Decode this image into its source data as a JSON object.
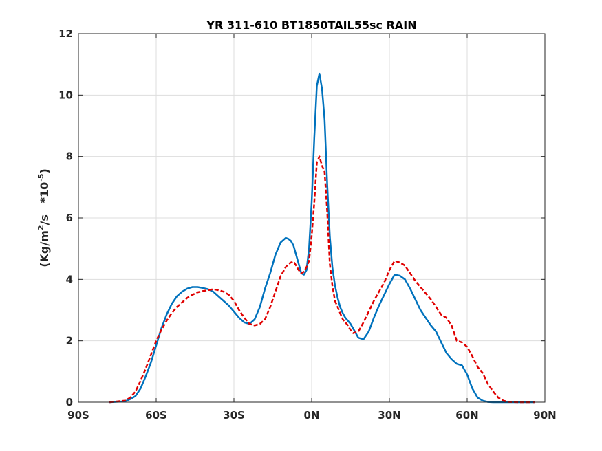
{
  "chart_data": {
    "type": "line",
    "title": "YR 311-610 BT1850TAIL55sc RAIN",
    "xlabel": "",
    "ylabel": {
      "prefix": "(Kg/m",
      "sup1": "2",
      "mid": "/s   *10",
      "sup2": "-5",
      "suffix": ")"
    },
    "xlim": [
      -90,
      90
    ],
    "ylim": [
      0,
      12
    ],
    "grid": true,
    "x_ticks": [
      -90,
      -60,
      -30,
      0,
      30,
      60,
      90
    ],
    "x_tick_labels": [
      "90S",
      "60S",
      "30S",
      "0N",
      "30N",
      "60N",
      "90N"
    ],
    "y_ticks": [
      0,
      2,
      4,
      6,
      8,
      10,
      12
    ],
    "y_tick_labels": [
      "0",
      "2",
      "4",
      "6",
      "8",
      "10",
      "12"
    ],
    "series": [
      {
        "color": "#0072BD",
        "style": "solid",
        "x": [
          -78,
          -72,
          -70,
          -68,
          -66,
          -64,
          -62,
          -60,
          -58,
          -56,
          -54,
          -52,
          -50,
          -48,
          -46,
          -44,
          -42,
          -40,
          -38,
          -36,
          -34,
          -32,
          -30,
          -28,
          -26,
          -24,
          -22,
          -20,
          -18,
          -16,
          -14,
          -12,
          -10,
          -9,
          -8,
          -7,
          -6,
          -5,
          -4,
          -3,
          -2,
          -1,
          0,
          1,
          2,
          3,
          4,
          5,
          6,
          7,
          8,
          9,
          10,
          11,
          12,
          13,
          14,
          15,
          16,
          18,
          20,
          22,
          24,
          26,
          28,
          30,
          32,
          34,
          36,
          38,
          40,
          42,
          44,
          46,
          48,
          50,
          52,
          54,
          56,
          58,
          60,
          62,
          64,
          66,
          68,
          70,
          72,
          74,
          76,
          80,
          84,
          86
        ],
        "y": [
          0.0,
          0.03,
          0.1,
          0.2,
          0.45,
          0.85,
          1.3,
          1.85,
          2.4,
          2.85,
          3.2,
          3.45,
          3.6,
          3.7,
          3.75,
          3.75,
          3.72,
          3.68,
          3.6,
          3.45,
          3.3,
          3.15,
          2.95,
          2.75,
          2.6,
          2.55,
          2.7,
          3.1,
          3.7,
          4.2,
          4.8,
          5.2,
          5.35,
          5.32,
          5.25,
          5.1,
          4.8,
          4.5,
          4.2,
          4.15,
          4.3,
          5.0,
          6.5,
          8.6,
          10.3,
          10.7,
          10.2,
          9.2,
          7.1,
          5.4,
          4.4,
          3.8,
          3.4,
          3.1,
          2.9,
          2.75,
          2.65,
          2.55,
          2.4,
          2.1,
          2.05,
          2.3,
          2.75,
          3.15,
          3.5,
          3.85,
          4.15,
          4.12,
          4.0,
          3.7,
          3.35,
          3.0,
          2.75,
          2.5,
          2.3,
          1.95,
          1.6,
          1.4,
          1.25,
          1.2,
          0.9,
          0.45,
          0.15,
          0.05,
          0.01,
          0.0,
          0.0,
          0.0,
          0.0,
          0.0,
          0.0,
          0.0
        ]
      },
      {
        "color": "#E00000",
        "style": "dashed",
        "x": [
          -78,
          -72,
          -70,
          -68,
          -66,
          -64,
          -62,
          -60,
          -58,
          -56,
          -54,
          -52,
          -50,
          -48,
          -46,
          -44,
          -42,
          -40,
          -38,
          -36,
          -34,
          -32,
          -30,
          -28,
          -26,
          -24,
          -22,
          -20,
          -18,
          -16,
          -14,
          -12,
          -10,
          -9,
          -8,
          -7,
          -6,
          -5,
          -4,
          -3,
          -2,
          -1,
          0,
          1,
          2,
          3,
          4,
          5,
          6,
          7,
          8,
          9,
          10,
          11,
          12,
          13,
          14,
          15,
          16,
          18,
          20,
          22,
          24,
          26,
          28,
          30,
          32,
          34,
          36,
          38,
          40,
          42,
          44,
          46,
          48,
          50,
          52,
          54,
          56,
          58,
          60,
          62,
          64,
          66,
          68,
          70,
          72,
          74,
          76,
          80,
          84,
          86
        ],
        "y": [
          0.0,
          0.05,
          0.15,
          0.35,
          0.7,
          1.1,
          1.55,
          2.0,
          2.35,
          2.65,
          2.9,
          3.1,
          3.25,
          3.4,
          3.5,
          3.58,
          3.62,
          3.65,
          3.68,
          3.65,
          3.6,
          3.5,
          3.3,
          3.0,
          2.75,
          2.55,
          2.5,
          2.55,
          2.7,
          3.1,
          3.6,
          4.1,
          4.4,
          4.5,
          4.55,
          4.58,
          4.45,
          4.3,
          4.2,
          4.25,
          4.4,
          4.6,
          5.4,
          6.5,
          7.8,
          8.0,
          7.7,
          7.5,
          6.2,
          4.5,
          3.8,
          3.3,
          3.1,
          2.9,
          2.7,
          2.6,
          2.5,
          2.35,
          2.25,
          2.3,
          2.6,
          2.95,
          3.3,
          3.6,
          3.9,
          4.3,
          4.6,
          4.55,
          4.45,
          4.2,
          3.95,
          3.75,
          3.55,
          3.35,
          3.1,
          2.85,
          2.75,
          2.5,
          2.0,
          1.95,
          1.8,
          1.5,
          1.15,
          0.95,
          0.6,
          0.35,
          0.15,
          0.05,
          0.01,
          0.0,
          0.0,
          0.0
        ]
      }
    ]
  }
}
